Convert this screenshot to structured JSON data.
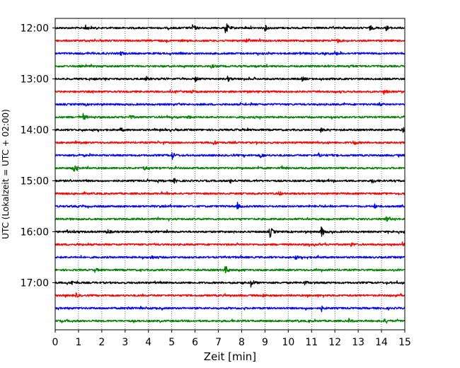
{
  "chart_data": {
    "type": "line",
    "title": "",
    "xlabel": "Zeit  [min]",
    "ylabel": "UTC (Lokalzeit = UTC + 02:00)",
    "xlim": [
      0,
      15
    ],
    "x_ticks": [
      0,
      1,
      2,
      3,
      4,
      5,
      6,
      7,
      8,
      9,
      10,
      11,
      12,
      13,
      14,
      15
    ],
    "y_tick_labels": [
      "12:00",
      "13:00",
      "14:00",
      "15:00",
      "16:00",
      "17:00"
    ],
    "grid": "vertical dotted lines at each minute",
    "legend": "none",
    "row_interval_minutes": 15,
    "rows_start": "12:00",
    "row_colors": [
      "#000000",
      "#ff0000",
      "#0000ff",
      "#008000"
    ],
    "traces": [
      {
        "start": "12:00",
        "events": [
          {
            "t": 1.3,
            "amp": 0.3
          },
          {
            "t": 5.9,
            "amp": 0.45
          },
          {
            "t": 7.3,
            "amp": 0.9
          },
          {
            "t": 9.0,
            "amp": 0.35
          },
          {
            "t": 13.5,
            "amp": 0.3
          },
          {
            "t": 14.2,
            "amp": 0.3
          }
        ]
      },
      {
        "start": "12:15",
        "events": [
          {
            "t": 8.2,
            "amp": 0.25
          },
          {
            "t": 12.1,
            "amp": 0.25
          }
        ]
      },
      {
        "start": "12:30",
        "events": [
          {
            "t": 2.8,
            "amp": 0.25
          },
          {
            "t": 10.5,
            "amp": 0.2
          },
          {
            "t": 12.0,
            "amp": 0.25
          }
        ]
      },
      {
        "start": "12:45",
        "events": [
          {
            "t": 6.7,
            "amp": 0.2
          },
          {
            "t": 12.6,
            "amp": 0.2
          }
        ]
      },
      {
        "start": "13:00",
        "events": [
          {
            "t": 3.9,
            "amp": 0.25
          },
          {
            "t": 6.0,
            "amp": 0.35
          },
          {
            "t": 7.4,
            "amp": 0.35
          },
          {
            "t": 10.6,
            "amp": 0.25
          }
        ]
      },
      {
        "start": "13:15",
        "events": [
          {
            "t": 5.8,
            "amp": 0.25
          },
          {
            "t": 14.1,
            "amp": 0.3
          }
        ]
      },
      {
        "start": "13:30",
        "events": [
          {
            "t": 13.9,
            "amp": 0.25
          }
        ]
      },
      {
        "start": "13:45",
        "events": [
          {
            "t": 1.2,
            "amp": 0.4
          },
          {
            "t": 3.2,
            "amp": 0.3
          },
          {
            "t": 5.7,
            "amp": 0.2
          }
        ]
      },
      {
        "start": "14:00",
        "events": [
          {
            "t": 2.8,
            "amp": 0.25
          },
          {
            "t": 11.4,
            "amp": 0.25
          },
          {
            "t": 14.9,
            "amp": 0.45
          }
        ]
      },
      {
        "start": "14:15",
        "events": [
          {
            "t": 6.8,
            "amp": 0.3
          },
          {
            "t": 12.8,
            "amp": 0.35
          }
        ]
      },
      {
        "start": "14:30",
        "events": [
          {
            "t": 5.0,
            "amp": 0.5
          },
          {
            "t": 8.8,
            "amp": 0.35
          },
          {
            "t": 11.3,
            "amp": 0.25
          }
        ]
      },
      {
        "start": "14:45",
        "events": [
          {
            "t": 0.8,
            "amp": 0.65
          },
          {
            "t": 3.8,
            "amp": 0.25
          },
          {
            "t": 9.7,
            "amp": 0.25
          }
        ]
      },
      {
        "start": "15:00",
        "events": [
          {
            "t": 5.1,
            "amp": 0.3
          },
          {
            "t": 7.5,
            "amp": 0.3
          },
          {
            "t": 13.6,
            "amp": 0.35
          }
        ]
      },
      {
        "start": "15:15",
        "events": [
          {
            "t": 9.6,
            "amp": 0.25
          }
        ]
      },
      {
        "start": "15:30",
        "events": [
          {
            "t": 7.8,
            "amp": 0.35
          },
          {
            "t": 13.7,
            "amp": 0.25
          }
        ]
      },
      {
        "start": "15:45",
        "events": [
          {
            "t": 14.2,
            "amp": 0.3
          }
        ]
      },
      {
        "start": "16:00",
        "events": [
          {
            "t": 0.5,
            "amp": 0.25
          },
          {
            "t": 2.2,
            "amp": 0.35
          },
          {
            "t": 9.2,
            "amp": 0.85
          },
          {
            "t": 11.4,
            "amp": 0.85
          }
        ]
      },
      {
        "start": "16:15",
        "events": [
          {
            "t": 12.7,
            "amp": 0.25
          },
          {
            "t": 14.9,
            "amp": 0.25
          }
        ]
      },
      {
        "start": "16:30",
        "events": [
          {
            "t": 4.1,
            "amp": 0.25
          },
          {
            "t": 10.3,
            "amp": 0.25
          }
        ]
      },
      {
        "start": "16:45",
        "events": [
          {
            "t": 1.7,
            "amp": 0.25
          },
          {
            "t": 7.3,
            "amp": 0.6
          }
        ]
      },
      {
        "start": "17:00",
        "events": [
          {
            "t": 0.7,
            "amp": 0.25
          },
          {
            "t": 8.4,
            "amp": 0.6
          },
          {
            "t": 10.7,
            "amp": 0.25
          }
        ]
      },
      {
        "start": "17:15",
        "events": [
          {
            "t": 0.9,
            "amp": 0.25
          },
          {
            "t": 8.9,
            "amp": 0.2
          }
        ]
      },
      {
        "start": "17:30",
        "events": [
          {
            "t": 3.1,
            "amp": 0.25
          },
          {
            "t": 11.4,
            "amp": 0.3
          }
        ]
      },
      {
        "start": "17:45",
        "events": [
          {
            "t": 12.6,
            "amp": 0.25
          },
          {
            "t": 14.1,
            "amp": 0.2
          }
        ]
      }
    ]
  }
}
